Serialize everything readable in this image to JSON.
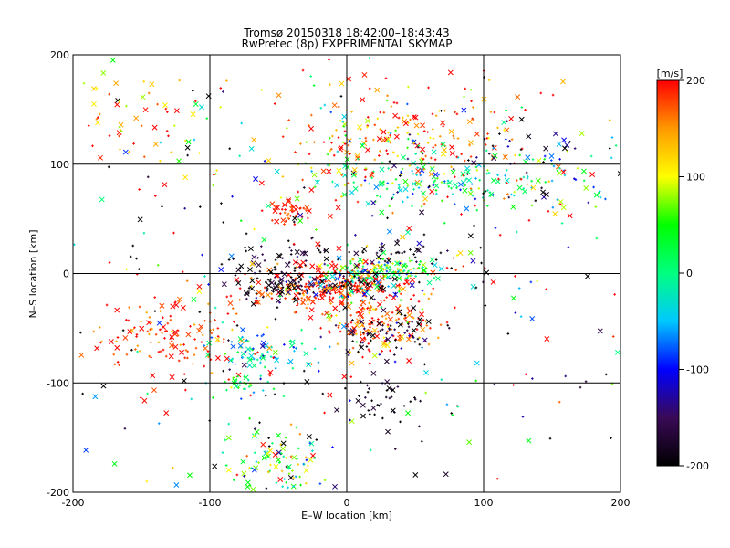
{
  "chart_data": {
    "type": "scatter",
    "title": "Tromsø 20150318 18:42:00–18:43:43",
    "subtitle": "RwPretec (8p) EXPERIMENTAL SKYMAP",
    "xlabel": "E–W location [km]",
    "ylabel": "N–S location [km]",
    "xlim": [
      -200,
      200
    ],
    "ylim": [
      -200,
      200
    ],
    "xticks": [
      "-200",
      "-100",
      "0",
      "100",
      "200"
    ],
    "yticks": [
      "-200",
      "-100",
      "0",
      "100",
      "200"
    ],
    "grid": true,
    "markers": [
      "x",
      "+"
    ],
    "colorbar": {
      "label": "[m/s]",
      "range": [
        -200,
        200
      ],
      "ticks": [
        "200",
        "100",
        "0",
        "-100",
        "-200"
      ],
      "colormap": [
        "#000000",
        "#3a0a57",
        "#0000ff",
        "#00c8ff",
        "#00ff80",
        "#00ff00",
        "#ffff00",
        "#ff9900",
        "#ff0000"
      ]
    },
    "clusters": [
      {
        "x": -12,
        "y": -13,
        "sx": 28,
        "sy": 10,
        "n": 260,
        "v": 190,
        "dv": 30
      },
      {
        "x": -55,
        "y": -10,
        "sx": 14,
        "sy": 8,
        "n": 70,
        "v": -190,
        "dv": 30
      },
      {
        "x": 28,
        "y": 2,
        "sx": 22,
        "sy": 6,
        "n": 140,
        "v": 40,
        "dv": 70
      },
      {
        "x": 10,
        "y": -8,
        "sx": 20,
        "sy": 10,
        "n": 90,
        "v": -120,
        "dv": 90
      },
      {
        "x": 20,
        "y": -48,
        "sx": 22,
        "sy": 15,
        "n": 150,
        "v": 175,
        "dv": 40
      },
      {
        "x": 30,
        "y": -55,
        "sx": 20,
        "sy": 12,
        "n": 60,
        "v": -180,
        "dv": 40
      },
      {
        "x": -125,
        "y": -60,
        "sx": 30,
        "sy": 20,
        "n": 140,
        "v": 185,
        "dv": 30
      },
      {
        "x": -70,
        "y": -70,
        "sx": 18,
        "sy": 10,
        "n": 70,
        "v": -30,
        "dv": 60
      },
      {
        "x": -75,
        "y": -100,
        "sx": 10,
        "sy": 5,
        "n": 30,
        "v": 10,
        "dv": 40
      },
      {
        "x": -50,
        "y": -175,
        "sx": 20,
        "sy": 14,
        "n": 100,
        "v": 40,
        "dv": 100
      },
      {
        "x": -40,
        "y": 55,
        "sx": 8,
        "sy": 6,
        "n": 40,
        "v": 190,
        "dv": 20
      },
      {
        "x": 60,
        "y": 85,
        "sx": 40,
        "sy": 10,
        "n": 140,
        "v": 0,
        "dv": 60
      },
      {
        "x": 60,
        "y": 130,
        "sx": 40,
        "sy": 25,
        "n": 140,
        "v": 170,
        "dv": 50
      },
      {
        "x": 10,
        "y": 115,
        "sx": 25,
        "sy": 20,
        "n": 90,
        "v": 110,
        "dv": 90
      },
      {
        "x": 140,
        "y": 95,
        "sx": 40,
        "sy": 20,
        "n": 100,
        "v": -60,
        "dv": 110
      },
      {
        "x": -140,
        "y": 150,
        "sx": 35,
        "sy": 30,
        "n": 60,
        "v": 140,
        "dv": 60
      },
      {
        "x": -40,
        "y": 15,
        "sx": 30,
        "sy": 8,
        "n": 50,
        "v": -190,
        "dv": 30
      },
      {
        "x": 45,
        "y": 18,
        "sx": 15,
        "sy": 6,
        "n": 30,
        "v": -190,
        "dv": 30
      },
      {
        "x": 30,
        "y": -120,
        "sx": 15,
        "sy": 15,
        "n": 40,
        "v": -190,
        "dv": 30
      },
      {
        "x": 0,
        "y": 0,
        "sx": 120,
        "sy": 110,
        "n": 450,
        "v": 0,
        "dv": 220
      }
    ]
  }
}
